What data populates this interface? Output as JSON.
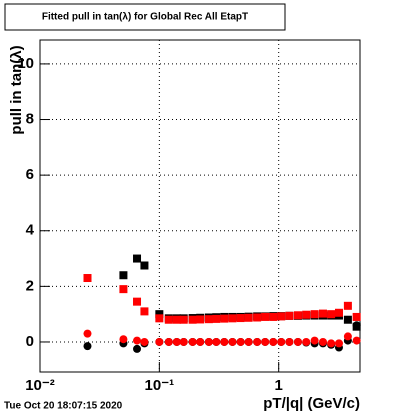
{
  "chart_data": {
    "type": "scatter",
    "title": "Fitted pull in tan(λ) for Global Rec All EtapT",
    "x_label": "pT/|q| (GeV/c)",
    "y_label": "pull in tan(λ)",
    "timestamp": "Tue Oct 20 18:07:15 2020",
    "x_log": true,
    "grid": true,
    "x": [
      0.025,
      0.05,
      0.065,
      0.075,
      0.1,
      0.12,
      0.14,
      0.16,
      0.19,
      0.22,
      0.26,
      0.3,
      0.35,
      0.41,
      0.48,
      0.56,
      0.66,
      0.77,
      0.9,
      1.05,
      1.23,
      1.45,
      1.7,
      2.0,
      2.35,
      2.75,
      3.2,
      3.8,
      4.5
    ],
    "series": [
      {
        "color": "#000000",
        "marker": "square",
        "values": [
          null,
          2.4,
          3.0,
          2.75,
          1.0,
          0.85,
          0.85,
          0.85,
          0.86,
          0.87,
          0.88,
          0.89,
          0.9,
          0.9,
          0.9,
          0.91,
          0.92,
          0.92,
          0.93,
          0.93,
          0.94,
          0.94,
          0.95,
          0.95,
          0.95,
          0.95,
          0.95,
          0.8,
          0.55
        ]
      },
      {
        "color": "#ff0000",
        "marker": "square",
        "values": [
          2.3,
          1.9,
          1.45,
          1.1,
          0.85,
          0.8,
          0.8,
          0.8,
          0.8,
          0.81,
          0.82,
          0.83,
          0.84,
          0.85,
          0.86,
          0.87,
          0.88,
          0.9,
          0.9,
          0.92,
          0.94,
          0.96,
          0.98,
          1.0,
          1.02,
          1.0,
          1.05,
          1.3,
          0.9
        ]
      },
      {
        "color": "#000000",
        "marker": "circle",
        "values": [
          -0.15,
          -0.05,
          -0.25,
          -0.05,
          0,
          0,
          0,
          0,
          0,
          0,
          0,
          0,
          0,
          0,
          0,
          0,
          0,
          0,
          0,
          0,
          0,
          0,
          -0.02,
          -0.05,
          -0.05,
          -0.1,
          -0.2,
          0.05,
          0.6
        ]
      },
      {
        "color": "#ff0000",
        "marker": "circle",
        "values": [
          0.3,
          0.1,
          0.05,
          0,
          0,
          0,
          0,
          0,
          0,
          0,
          0,
          0,
          0,
          0,
          0,
          0,
          0,
          0,
          0,
          0,
          0,
          0,
          0,
          0.05,
          0,
          -0.05,
          -0.05,
          0.2,
          0.05
        ]
      }
    ],
    "xlim": [
      0.01,
      4.8
    ],
    "xticks": [
      {
        "value": 0.01,
        "label": "10⁻²"
      },
      {
        "value": 0.1,
        "label": "10⁻¹"
      },
      1
    ],
    "ylim": [
      -1.08,
      10.86
    ],
    "yticks": [
      0,
      2,
      4,
      6,
      8,
      10
    ]
  }
}
